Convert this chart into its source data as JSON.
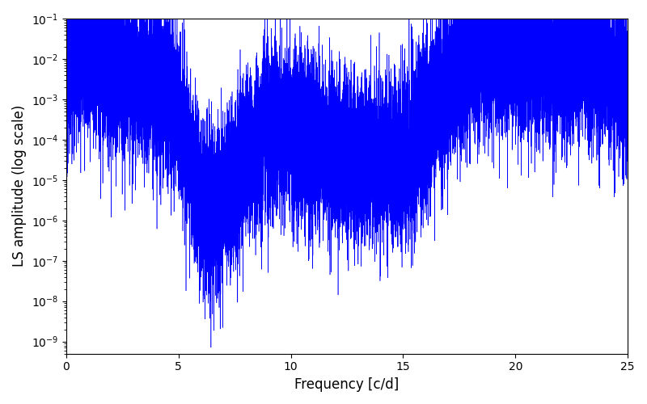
{
  "title": "",
  "xlabel": "Frequency [c/d]",
  "ylabel": "LS amplitude (log scale)",
  "line_color": "blue",
  "xlim": [
    0,
    25
  ],
  "ylim": [
    5e-10,
    0.1
  ],
  "figsize": [
    8.0,
    5.0
  ],
  "dpi": 100,
  "background_color": "#ffffff",
  "seed": 12345,
  "n_freqs": 20000,
  "freq_max": 25.0
}
